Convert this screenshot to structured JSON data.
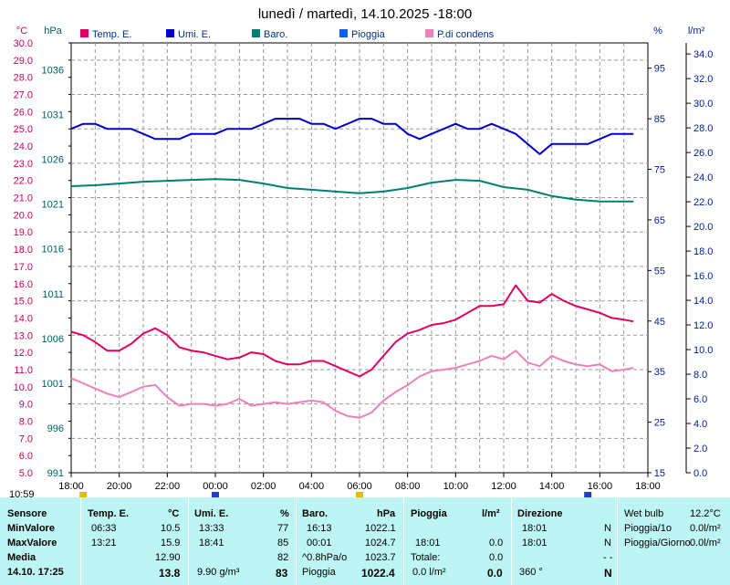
{
  "chart_data": {
    "type": "line",
    "title": "lunedì / martedì, 14.10.2025  -18:00",
    "x_labels": [
      "18:00",
      "20:00",
      "22:00",
      "00:00",
      "02:00",
      "04:00",
      "06:00",
      "08:00",
      "10:00",
      "12:00",
      "14:00",
      "16:00",
      "18:00"
    ],
    "x_range_hours": [
      0,
      24
    ],
    "axes": {
      "celsius": {
        "unit": "°C",
        "label": "Sensore",
        "range": [
          5.0,
          30.0
        ],
        "ticks": [
          "5.0",
          "6.0",
          "7.0",
          "8.0",
          "9.0",
          "10.0",
          "11.0",
          "12.0",
          "13.0",
          "14.0",
          "15.0",
          "16.0",
          "17.0",
          "18.0",
          "19.0",
          "20.0",
          "21.0",
          "22.0",
          "23.0",
          "24.0",
          "25.0",
          "26.0",
          "27.0",
          "28.0",
          "29.0",
          "30.0"
        ]
      },
      "hpa": {
        "unit": "hPa",
        "range": [
          991,
          1039
        ],
        "ticks": [
          "991",
          "996",
          "1001",
          "1006",
          "1011",
          "1016",
          "1021",
          "1026",
          "1031",
          "1036"
        ]
      },
      "percent": {
        "unit": "%",
        "range": [
          15,
          100
        ],
        "ticks": [
          "15",
          "25",
          "35",
          "45",
          "55",
          "65",
          "75",
          "85",
          "95"
        ]
      },
      "rain": {
        "unit": "l/m²",
        "range": [
          0.0,
          34.9
        ],
        "ticks": [
          "0.0",
          "2.0",
          "4.0",
          "6.0",
          "8.0",
          "10.0",
          "12.0",
          "14.0",
          "16.0",
          "18.0",
          "20.0",
          "22.0",
          "24.0",
          "26.0",
          "28.0",
          "30.0",
          "32.0",
          "34.0"
        ]
      }
    },
    "legend": [
      {
        "label": "Temp. E.",
        "color": "#e0005f"
      },
      {
        "label": "Umi. E.",
        "color": "#0000c8"
      },
      {
        "label": "Baro.",
        "color": "#008070"
      },
      {
        "label": "Pioggia",
        "color": "#1060e0"
      },
      {
        "label": "P.di condens",
        "color": "#f080b8"
      }
    ],
    "series": [
      {
        "name": "Temp. E.",
        "axis": "celsius",
        "color": "#e0005f",
        "x": [
          0,
          0.5,
          1,
          1.5,
          2,
          2.5,
          3,
          3.5,
          4,
          4.5,
          5,
          5.5,
          6,
          6.5,
          7,
          7.5,
          8,
          8.5,
          9,
          9.5,
          10,
          10.5,
          11,
          11.5,
          12,
          12.5,
          13,
          13.5,
          14,
          14.5,
          15,
          15.5,
          16,
          16.5,
          17,
          17.5,
          18,
          18.5,
          19,
          19.5,
          20,
          20.5,
          21,
          21.5,
          22,
          22.5,
          23,
          23.4
        ],
        "y": [
          13.2,
          13.0,
          12.6,
          12.1,
          12.1,
          12.5,
          13.1,
          13.4,
          13.0,
          12.3,
          12.1,
          12.0,
          11.8,
          11.6,
          11.7,
          12.0,
          11.9,
          11.5,
          11.3,
          11.3,
          11.5,
          11.5,
          11.2,
          10.9,
          10.6,
          11.0,
          11.8,
          12.6,
          13.1,
          13.3,
          13.6,
          13.7,
          13.9,
          14.3,
          14.7,
          14.7,
          14.8,
          15.9,
          15.0,
          14.9,
          15.4,
          15.0,
          14.7,
          14.5,
          14.3,
          14.0,
          13.9,
          13.8
        ]
      },
      {
        "name": "Umi. E.",
        "axis": "percent",
        "color": "#0000c8",
        "x": [
          0,
          0.5,
          1,
          1.5,
          2,
          2.5,
          3,
          3.5,
          4,
          4.5,
          5,
          5.5,
          6,
          6.5,
          7,
          7.5,
          8,
          8.5,
          9,
          9.5,
          10,
          10.5,
          11,
          11.5,
          12,
          12.5,
          13,
          13.5,
          14,
          14.5,
          15,
          15.5,
          16,
          16.5,
          17,
          17.5,
          18,
          18.5,
          19,
          19.5,
          20,
          20.5,
          21,
          21.5,
          22,
          22.5,
          23,
          23.4
        ],
        "y": [
          83,
          84,
          84,
          83,
          83,
          83,
          82,
          81,
          81,
          81,
          82,
          82,
          82,
          83,
          83,
          83,
          84,
          85,
          85,
          85,
          84,
          84,
          83,
          84,
          85,
          85,
          84,
          84,
          82,
          81,
          82,
          83,
          84,
          83,
          83,
          84,
          83,
          82,
          80,
          78,
          80,
          80,
          80,
          80,
          81,
          82,
          82,
          82
        ]
      },
      {
        "name": "Baro.",
        "axis": "hpa",
        "color": "#008070",
        "x": [
          0,
          1,
          2,
          3,
          4,
          5,
          6,
          7,
          8,
          9,
          10,
          11,
          12,
          13,
          14,
          15,
          16,
          17,
          18,
          19,
          20,
          21,
          22,
          23,
          23.4
        ],
        "y": [
          1023.0,
          1023.1,
          1023.3,
          1023.5,
          1023.6,
          1023.7,
          1023.8,
          1023.7,
          1023.3,
          1022.8,
          1022.6,
          1022.4,
          1022.2,
          1022.4,
          1022.8,
          1023.4,
          1023.7,
          1023.6,
          1022.9,
          1022.6,
          1021.9,
          1021.5,
          1021.3,
          1021.3,
          1021.3
        ]
      },
      {
        "name": "P.di condens",
        "axis": "celsius",
        "color": "#f080b8",
        "x": [
          0,
          0.5,
          1,
          1.5,
          2,
          2.5,
          3,
          3.5,
          4,
          4.5,
          5,
          5.5,
          6,
          6.5,
          7,
          7.5,
          8,
          8.5,
          9,
          9.5,
          10,
          10.5,
          11,
          11.5,
          12,
          12.5,
          13,
          13.5,
          14,
          14.5,
          15,
          15.5,
          16,
          16.5,
          17,
          17.5,
          18,
          18.5,
          19,
          19.5,
          20,
          20.5,
          21,
          21.5,
          22,
          22.5,
          23,
          23.4
        ],
        "y": [
          10.5,
          10.2,
          9.9,
          9.6,
          9.4,
          9.7,
          10.0,
          10.1,
          9.4,
          8.9,
          9.0,
          9.0,
          8.9,
          9.0,
          9.3,
          8.9,
          9.0,
          9.1,
          9.0,
          9.1,
          9.2,
          9.1,
          8.6,
          8.3,
          8.2,
          8.5,
          9.2,
          9.7,
          10.1,
          10.6,
          10.9,
          11.0,
          11.1,
          11.3,
          11.5,
          11.8,
          11.6,
          12.1,
          11.4,
          11.2,
          11.8,
          11.5,
          11.3,
          11.2,
          11.3,
          10.9,
          11.0,
          11.1
        ]
      }
    ],
    "markers": [
      {
        "x": 0.5,
        "color": "#e0c000"
      },
      {
        "x": 6.0,
        "color": "#2040c0"
      },
      {
        "x": 12.0,
        "color": "#e0c000"
      },
      {
        "x": 21.5,
        "color": "#2040c0"
      }
    ]
  },
  "panel": {
    "time": "10:59",
    "sensore": {
      "title": "Sensore",
      "min": "MinValore",
      "max": "MaxValore",
      "media": "Media",
      "date": "14.10. 17:25"
    },
    "temp": {
      "title": "Temp. E.",
      "unit": "°C",
      "min_time": "06:33",
      "min": "10.5",
      "max_time": "13:21",
      "max": "15.9",
      "media": "12.90",
      "current": "13.8"
    },
    "umi": {
      "title": "Umi. E.",
      "unit": "%",
      "min_time": "13:33",
      "min": "77",
      "max_time": "18:41",
      "max": "85",
      "media": "82",
      "abs": "9.90 g/m³",
      "current": "83"
    },
    "baro": {
      "title": "Baro.",
      "unit": "hPa",
      "min_time": "16:13",
      "min": "1022.1",
      "max_time": "00:01",
      "max": "1024.7",
      "trend_label": "^0.8hPa/o",
      "media": "1023.7",
      "label": "Pioggia",
      "current": "1022.4"
    },
    "pioggia": {
      "title": "Pioggia",
      "unit": "l/m²",
      "max_time": "18:01",
      "max": "0.0",
      "totale_label": "Totale:",
      "totale": "0.0",
      "rate": "0.0 l/m²",
      "current": "0.0"
    },
    "direzione": {
      "title": "Direzione",
      "min_time": "18:01",
      "min": "N",
      "max_time": "18:01",
      "max": "N",
      "media": "- -",
      "deg": "360 °",
      "current": "N"
    },
    "extra": {
      "wetbulb_label": "Wet bulb",
      "wetbulb": "12.2°C",
      "rain_h_label": "Pioggia/1o",
      "rain_h": "0.0l/m²",
      "rain_d_label": "Pioggia/Giorno",
      "rain_d": "0.0l/m²"
    }
  }
}
